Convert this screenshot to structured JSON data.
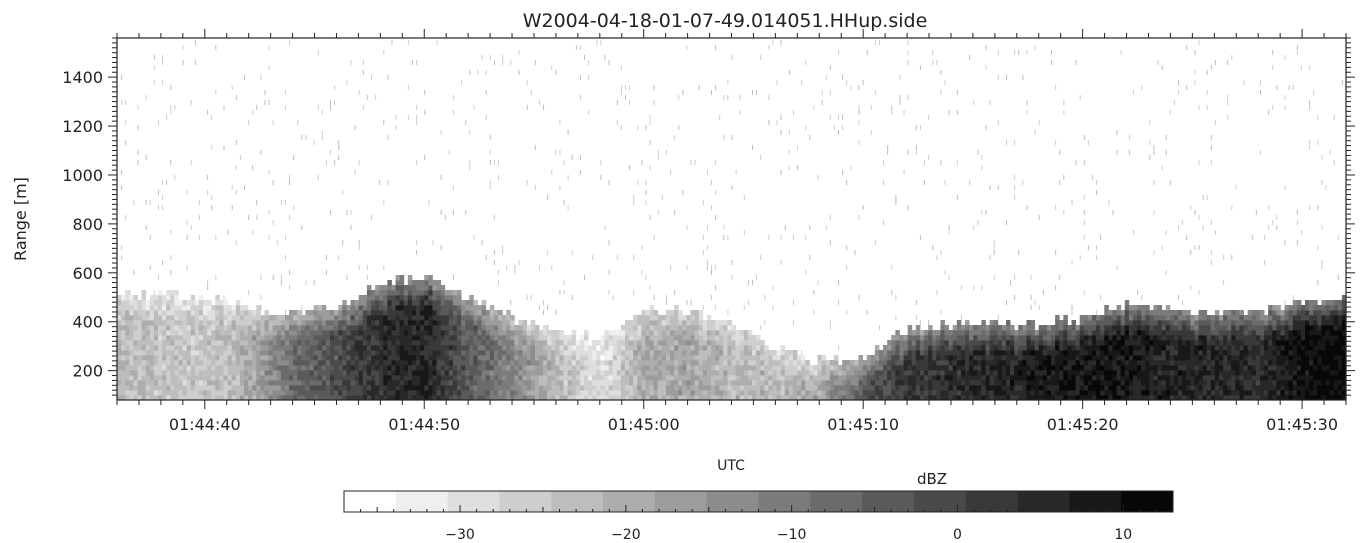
{
  "chart_data": {
    "type": "heatmap",
    "title": "W2004-04-18-01-07-49.014051.HHup.side",
    "xlabel": "UTC",
    "ylabel": "Range [m]",
    "x_ticks": [
      "01:44:40",
      "01:44:50",
      "01:45:00",
      "01:45:10",
      "01:45:20",
      "01:45:30"
    ],
    "x_range_seconds_utc": [
      "01:44:36",
      "01:45:32"
    ],
    "y_ticks": [
      200,
      400,
      600,
      800,
      1000,
      1200,
      1400
    ],
    "ylim": [
      80,
      1560
    ],
    "colorbar": {
      "label": "dBZ",
      "min": -37,
      "max": 13,
      "levels": 16,
      "ticks": [
        -30,
        -20,
        -10,
        0,
        10
      ],
      "colormap": "grayscale (white = low, black = high)"
    },
    "echo_top_profile": {
      "x": [
        "01:44:36",
        "01:44:38",
        "01:44:40",
        "01:44:42",
        "01:44:44",
        "01:44:46",
        "01:44:48",
        "01:44:50",
        "01:44:52",
        "01:44:54",
        "01:44:56",
        "01:44:58",
        "01:45:00",
        "01:45:02",
        "01:45:04",
        "01:45:06",
        "01:45:08",
        "01:45:10",
        "01:45:12",
        "01:45:14",
        "01:45:16",
        "01:45:18",
        "01:45:20",
        "01:45:22",
        "01:45:24",
        "01:45:26",
        "01:45:28",
        "01:45:30",
        "01:45:32"
      ],
      "top_m": [
        530,
        520,
        510,
        470,
        440,
        470,
        560,
        600,
        510,
        430,
        380,
        340,
        450,
        460,
        410,
        300,
        250,
        260,
        380,
        400,
        410,
        400,
        420,
        480,
        460,
        440,
        450,
        490,
        500
      ],
      "core_dbz": [
        -22,
        -24,
        -25,
        -20,
        -8,
        -2,
        4,
        6,
        -4,
        -12,
        -22,
        -30,
        -20,
        -18,
        -22,
        -22,
        -18,
        -4,
        2,
        4,
        6,
        8,
        9,
        8,
        6,
        6,
        4,
        10,
        12
      ]
    }
  }
}
